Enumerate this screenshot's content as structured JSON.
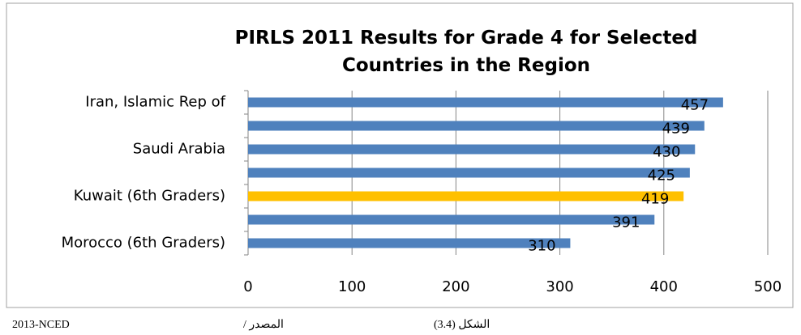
{
  "chart_data": {
    "type": "hbar",
    "title": "PIRLS 2011 Results for Grade 4 for Selected Countries in the Region",
    "categories": [
      "Iran, Islamic Rep of",
      null,
      "Saudi Arabia",
      null,
      "Kuwait (6th Graders)",
      null,
      "Morocco (6th Graders)"
    ],
    "values": [
      457,
      439,
      430,
      425,
      419,
      391,
      310
    ],
    "colors": [
      "#4f81bd",
      "#4f81bd",
      "#4f81bd",
      "#4f81bd",
      "#ffc000",
      "#4f81bd",
      "#4f81bd"
    ],
    "xlim": [
      0,
      500
    ],
    "xticks": [
      0,
      100,
      200,
      300,
      400,
      500
    ],
    "grid": true
  },
  "footer": {
    "source": "2013-NCED",
    "source_label": "المصدر /",
    "figure": "الشكل (3.4)"
  }
}
